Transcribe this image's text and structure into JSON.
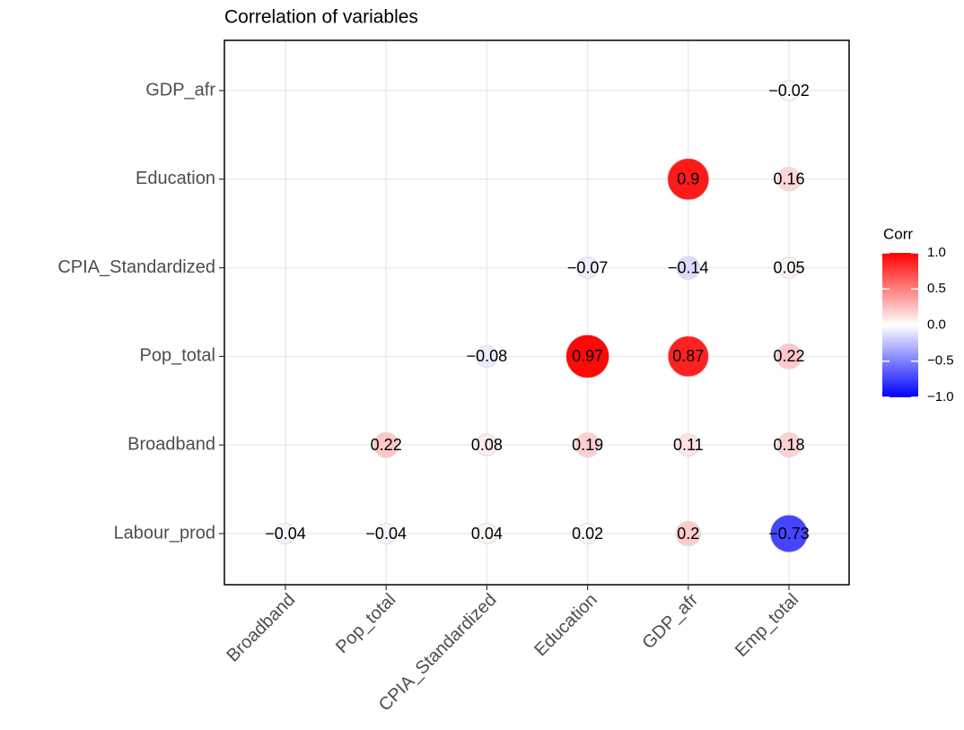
{
  "chart_data": {
    "type": "correlation",
    "title": "Correlation of variables",
    "x_categories": [
      "Broadband",
      "Pop_total",
      "CPIA_Standardized",
      "Education",
      "GDP_afr",
      "Emp_total"
    ],
    "y_categories": [
      "Labour_prod",
      "Broadband",
      "Pop_total",
      "CPIA_Standardized",
      "Education",
      "GDP_afr"
    ],
    "values": [
      [
        -0.04,
        -0.04,
        0.04,
        0.02,
        0.2,
        -0.73
      ],
      [
        null,
        0.22,
        0.08,
        0.19,
        0.11,
        0.18
      ],
      [
        null,
        null,
        -0.08,
        0.97,
        0.87,
        0.22
      ],
      [
        null,
        null,
        null,
        -0.07,
        -0.14,
        0.05
      ],
      [
        null,
        null,
        null,
        null,
        0.9,
        0.16
      ],
      [
        null,
        null,
        null,
        null,
        null,
        -0.02
      ]
    ],
    "value_labels": [
      [
        "−0.04",
        "−0.04",
        "0.04",
        "0.02",
        "0.2",
        "−0.73"
      ],
      [
        null,
        "0.22",
        "0.08",
        "0.19",
        "0.11",
        "0.18"
      ],
      [
        null,
        null,
        "−0.08",
        "0.97",
        "0.87",
        "0.22"
      ],
      [
        null,
        null,
        null,
        "−0.07",
        "−0.14",
        "0.05"
      ],
      [
        null,
        null,
        null,
        null,
        "0.9",
        "0.16"
      ],
      [
        null,
        null,
        null,
        null,
        null,
        "−0.02"
      ]
    ],
    "legend_title": "Corr",
    "colors": {
      "low": "#0000ff",
      "mid": "#ffffff",
      "high": "#ff0000"
    },
    "clim": [
      -1,
      1
    ],
    "cticks": [
      {
        "value": 1,
        "label": "1.0"
      },
      0.5,
      {
        "value": 0,
        "label": "0.0"
      },
      {
        "value": -0.5,
        "label": "−0.5"
      },
      {
        "value": -1,
        "label": "−1.0"
      }
    ],
    "grid": true
  }
}
